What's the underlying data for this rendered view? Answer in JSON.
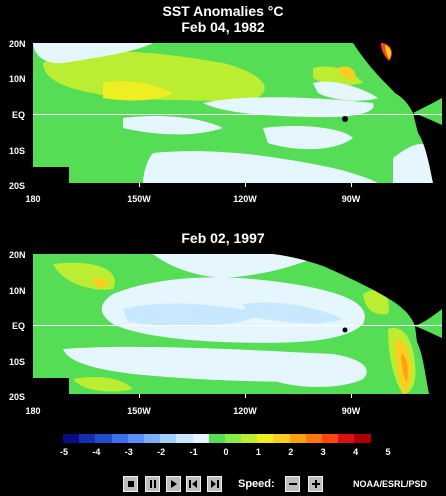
{
  "title": "SST Anomalies °C",
  "maps": [
    {
      "date": "Feb 04, 1982"
    },
    {
      "date": "Feb 02, 1997"
    }
  ],
  "lat_labels": [
    "20N",
    "10N",
    "EQ",
    "10S",
    "20S"
  ],
  "lon_labels": [
    "180",
    "150W",
    "120W",
    "90W"
  ],
  "colorbar": {
    "labels": [
      "-5",
      "-4",
      "-3",
      "-2",
      "-1",
      "0",
      "1",
      "2",
      "3",
      "4",
      "5"
    ],
    "colors": [
      "#0b0b8a",
      "#1030b0",
      "#2050d0",
      "#3a70f0",
      "#5a90ff",
      "#7ab0ff",
      "#a0d0ff",
      "#c8e8ff",
      "#e6f6ff",
      "#55dd55",
      "#88ee44",
      "#bbee33",
      "#eeee22",
      "#ffcc22",
      "#ffa011",
      "#ff7711",
      "#ff4411",
      "#dd1111",
      "#aa0000"
    ]
  },
  "controls": {
    "speed_label": "Speed:",
    "buttons": [
      "stop-icon",
      "pause-icon",
      "play-icon",
      "step-back-icon",
      "step-forward-icon",
      "speed-down-icon",
      "speed-up-icon"
    ]
  },
  "credit": "NOAA/ESRL/PSD",
  "colors": {
    "background": "#000000",
    "land": "#000000",
    "cool": "#e6f6ff",
    "neutral": "#55dd55",
    "warm": "#bbee33",
    "hot": "#ffcc22"
  }
}
